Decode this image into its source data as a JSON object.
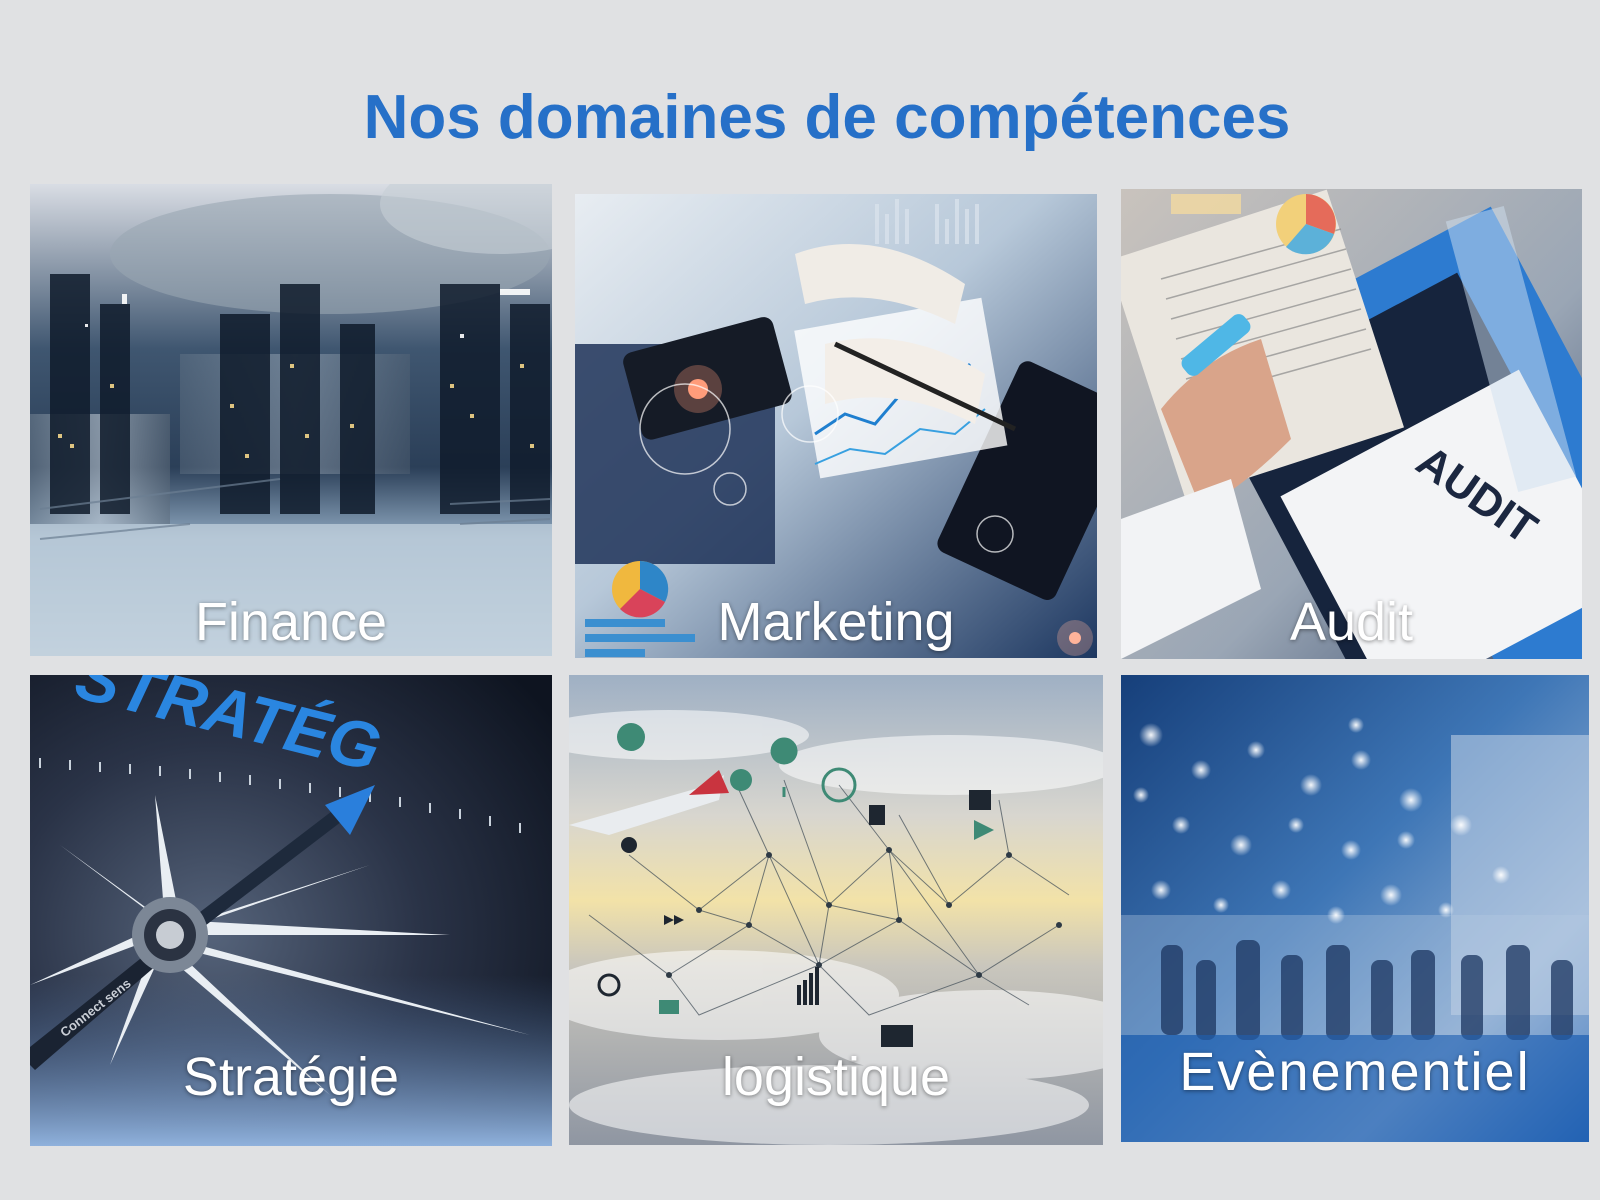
{
  "page": {
    "title": "Nos domaines de compétences"
  },
  "tiles": [
    {
      "label": "Finance"
    },
    {
      "label": "Marketing"
    },
    {
      "label": "Audit"
    },
    {
      "label": "Stratégie"
    },
    {
      "label": "logistique"
    },
    {
      "label": "Evènementiel"
    }
  ],
  "images": {
    "audit_sign": "AUDIT",
    "strategy_dial": "STRATÉG",
    "compass_brand": "Connect sens"
  },
  "colors": {
    "background": "#e0e1e3",
    "title": "#2670c8",
    "label": "#ffffff"
  }
}
